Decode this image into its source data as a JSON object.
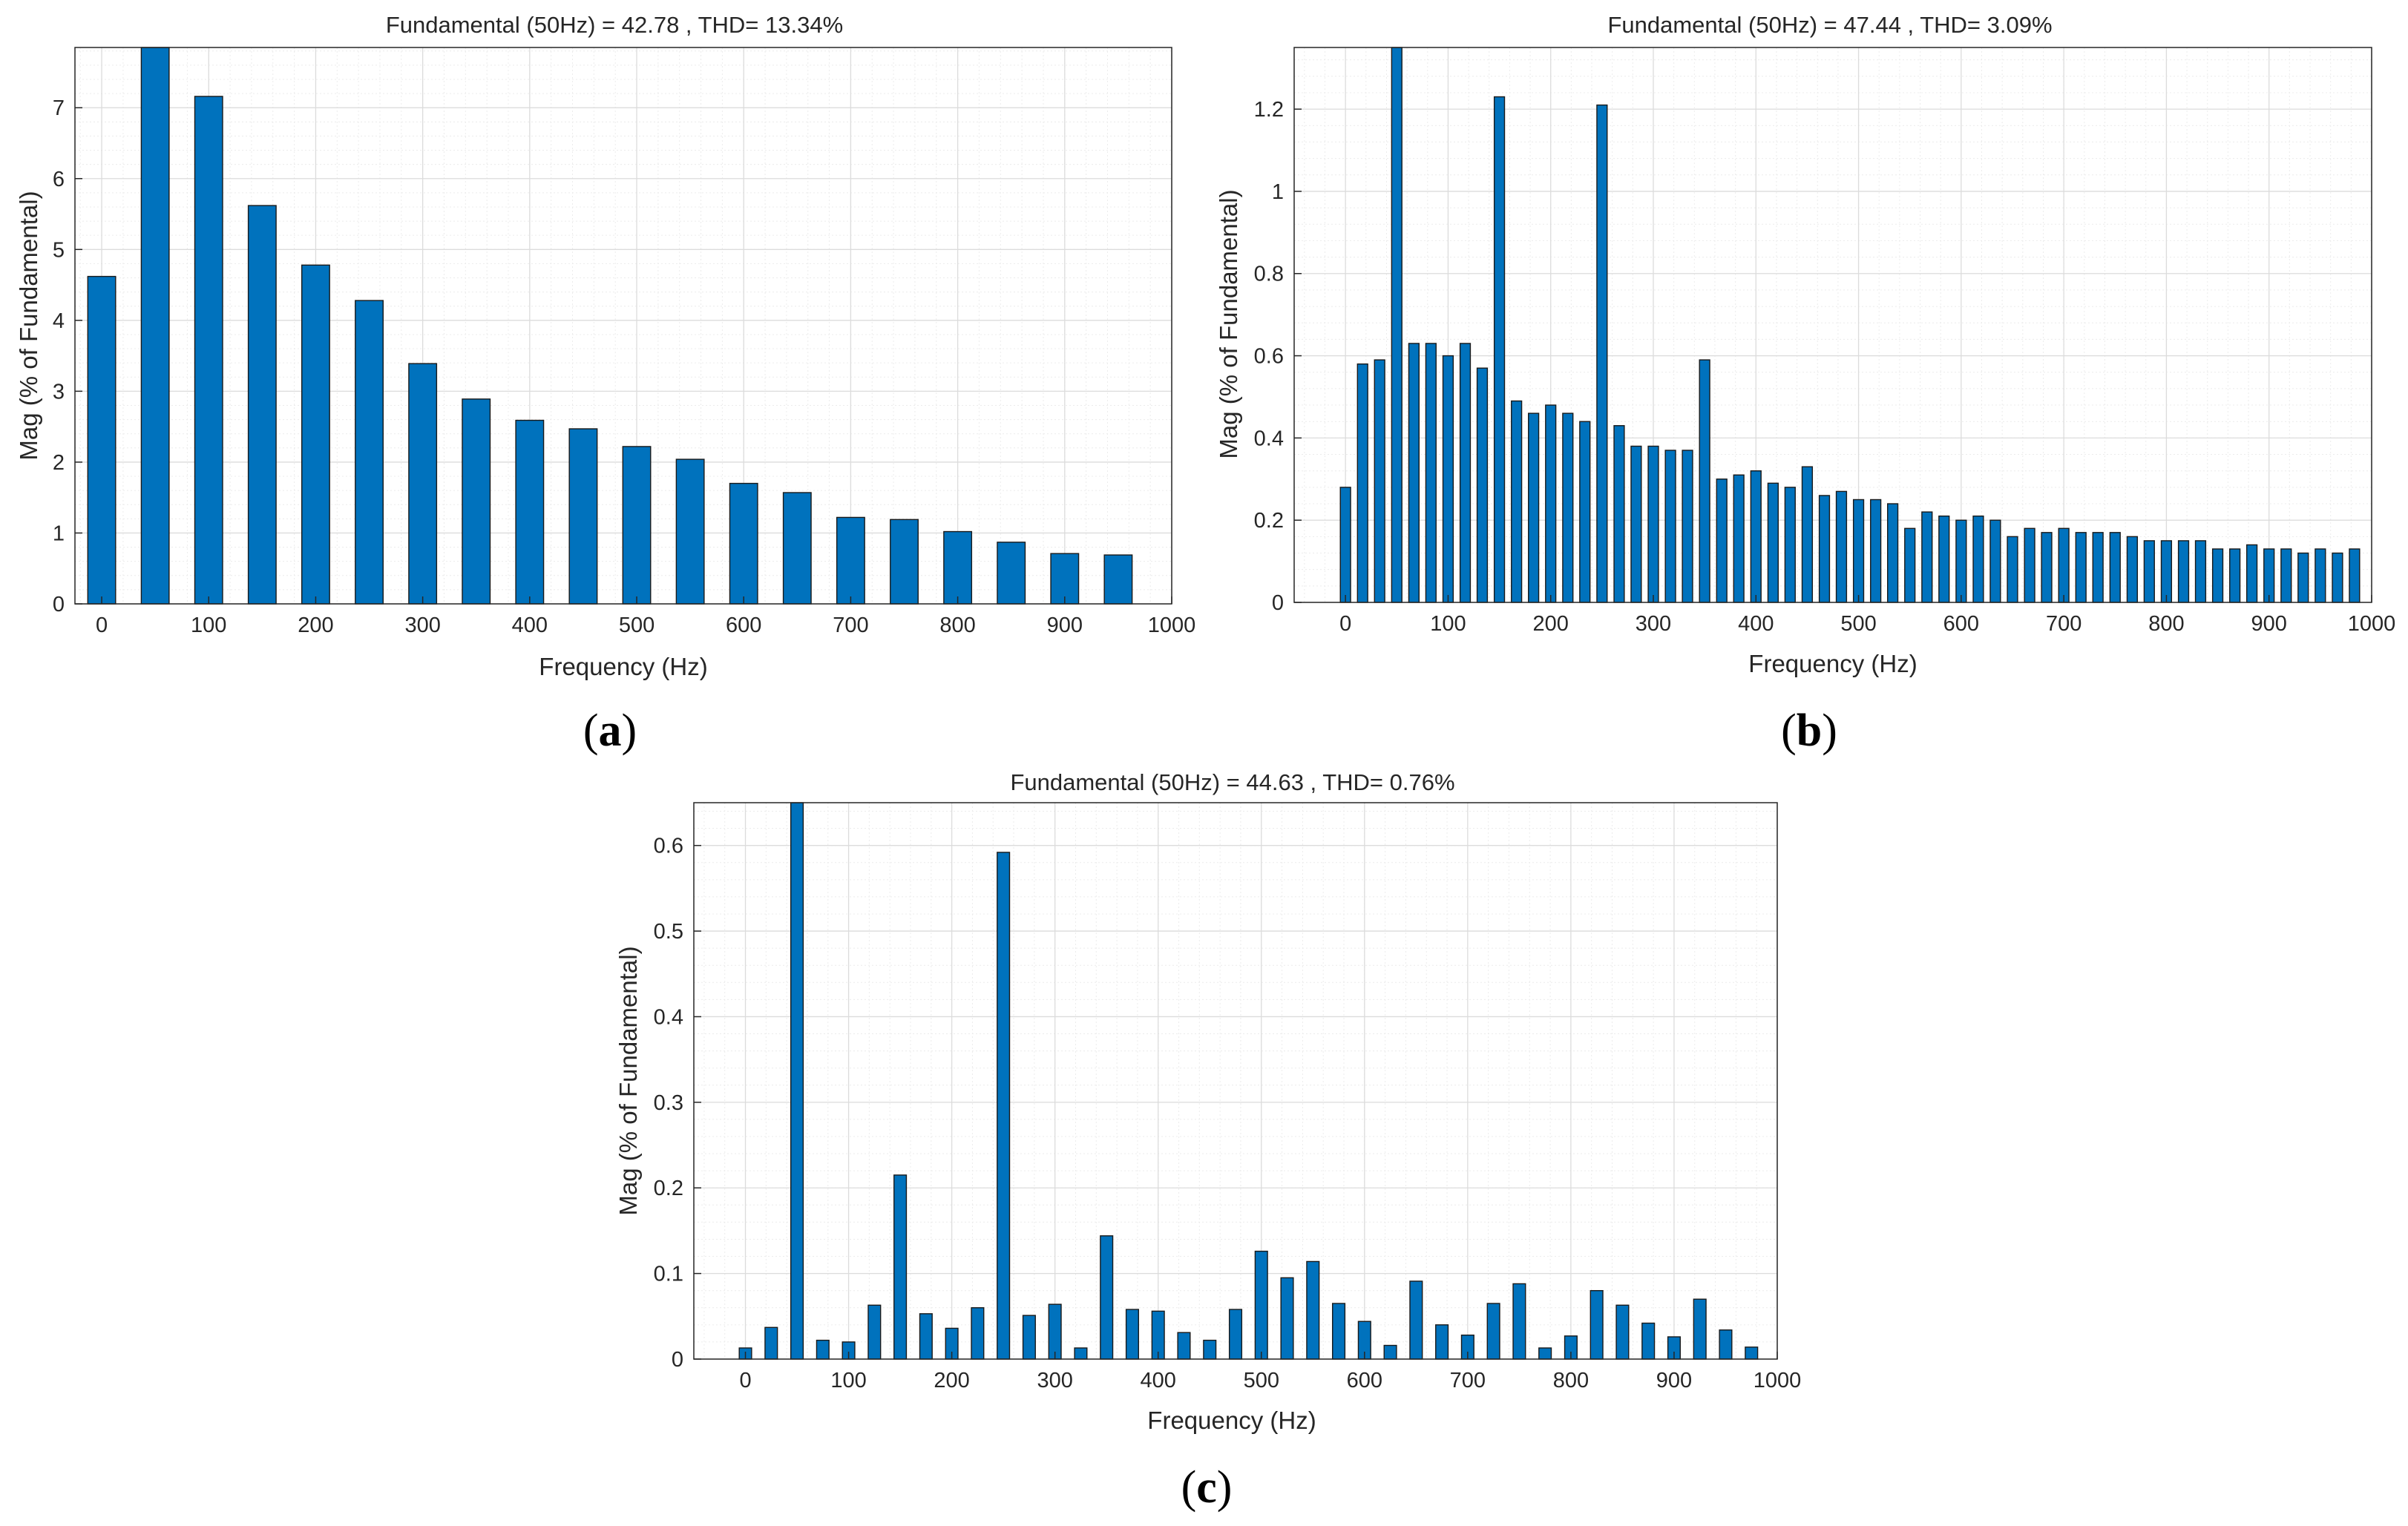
{
  "chart_data": [
    {
      "id": "a",
      "type": "bar",
      "caption": "a",
      "title": "Fundamental (50Hz) = 42.78 , THD= 13.34%",
      "xlabel": "Frequency (Hz)",
      "ylabel": "Mag (% of Fundamental)",
      "xlim": [
        -25,
        1000
      ],
      "ylim": [
        0,
        7.85
      ],
      "xticks": [
        0,
        100,
        200,
        300,
        400,
        500,
        600,
        700,
        800,
        900,
        1000
      ],
      "yticks": [
        0,
        1,
        2,
        3,
        4,
        5,
        6,
        7
      ],
      "bar_color": "#0072BD",
      "bar_width_hz": 26,
      "grid": true,
      "x": [
        0,
        50,
        100,
        150,
        200,
        250,
        300,
        350,
        400,
        450,
        500,
        550,
        600,
        650,
        700,
        750,
        800,
        850,
        900,
        950
      ],
      "values": [
        4.62,
        7.85,
        7.16,
        5.62,
        4.78,
        4.28,
        3.39,
        2.89,
        2.59,
        2.47,
        2.22,
        2.04,
        1.7,
        1.57,
        1.22,
        1.19,
        1.02,
        0.87,
        0.71,
        0.69
      ]
    },
    {
      "id": "b",
      "type": "bar",
      "caption": "b",
      "title": "Fundamental (50Hz) = 47.44 , THD= 3.09%",
      "xlabel": "Frequency (Hz)",
      "ylabel": "Mag (% of Fundamental)",
      "xlim": [
        -50,
        1000
      ],
      "ylim": [
        0,
        1.35
      ],
      "xticks": [
        0,
        100,
        200,
        300,
        400,
        500,
        600,
        700,
        800,
        900,
        1000
      ],
      "yticks": [
        0,
        0.2,
        0.4,
        0.6,
        0.8,
        1,
        1.2
      ],
      "bar_color": "#0072BD",
      "bar_width_hz": 10,
      "grid": true,
      "x": [
        0,
        16.7,
        33.3,
        50,
        66.7,
        83.3,
        100,
        116.7,
        133.3,
        150,
        166.7,
        183.3,
        200,
        216.7,
        233.3,
        250,
        266.7,
        283.3,
        300,
        316.7,
        333.3,
        350,
        366.7,
        383.3,
        400,
        416.7,
        433.3,
        450,
        466.7,
        483.3,
        500,
        516.7,
        533.3,
        550,
        566.7,
        583.3,
        600,
        616.7,
        633.3,
        650,
        666.7,
        683.3,
        700,
        716.7,
        733.3,
        750,
        766.7,
        783.3,
        800,
        816.7,
        833.3,
        850,
        866.7,
        883.3,
        900,
        916.7,
        933.3,
        950,
        966.7,
        983.3
      ],
      "values": [
        0.28,
        0.58,
        0.59,
        1.35,
        0.63,
        0.63,
        0.6,
        0.63,
        0.57,
        1.23,
        0.49,
        0.46,
        0.48,
        0.46,
        0.44,
        1.21,
        0.43,
        0.38,
        0.38,
        0.37,
        0.37,
        0.59,
        0.3,
        0.31,
        0.32,
        0.29,
        0.28,
        0.33,
        0.26,
        0.27,
        0.25,
        0.25,
        0.24,
        0.18,
        0.22,
        0.21,
        0.2,
        0.21,
        0.2,
        0.16,
        0.18,
        0.17,
        0.18,
        0.17,
        0.17,
        0.17,
        0.16,
        0.15,
        0.15,
        0.15,
        0.15,
        0.13,
        0.13,
        0.14,
        0.13,
        0.13,
        0.12,
        0.13,
        0.12,
        0.13
      ]
    },
    {
      "id": "c",
      "type": "bar",
      "caption": "c",
      "title": "Fundamental (50Hz) = 44.63 , THD= 0.76%",
      "xlabel": "Frequency (Hz)",
      "ylabel": "Mag (% of Fundamental)",
      "xlim": [
        -50,
        1000
      ],
      "ylim": [
        0,
        0.65
      ],
      "xticks": [
        0,
        100,
        200,
        300,
        400,
        500,
        600,
        700,
        800,
        900,
        1000
      ],
      "yticks": [
        0,
        0.1,
        0.2,
        0.3,
        0.4,
        0.5,
        0.6
      ],
      "bar_color": "#0072BD",
      "bar_width_hz": 12,
      "grid": true,
      "x": [
        0,
        25,
        50,
        75,
        100,
        125,
        150,
        175,
        200,
        225,
        250,
        275,
        300,
        325,
        350,
        375,
        400,
        425,
        450,
        475,
        500,
        525,
        550,
        575,
        600,
        625,
        650,
        675,
        700,
        725,
        750,
        775,
        800,
        825,
        850,
        875,
        900,
        925,
        950,
        975
      ],
      "values": [
        0.013,
        0.037,
        0.65,
        0.022,
        0.02,
        0.063,
        0.215,
        0.053,
        0.036,
        0.06,
        0.592,
        0.051,
        0.064,
        0.013,
        0.144,
        0.058,
        0.056,
        0.031,
        0.022,
        0.058,
        0.126,
        0.095,
        0.114,
        0.065,
        0.044,
        0.016,
        0.091,
        0.04,
        0.028,
        0.065,
        0.088,
        0.013,
        0.027,
        0.08,
        0.063,
        0.042,
        0.026,
        0.07,
        0.034,
        0.014
      ]
    }
  ]
}
